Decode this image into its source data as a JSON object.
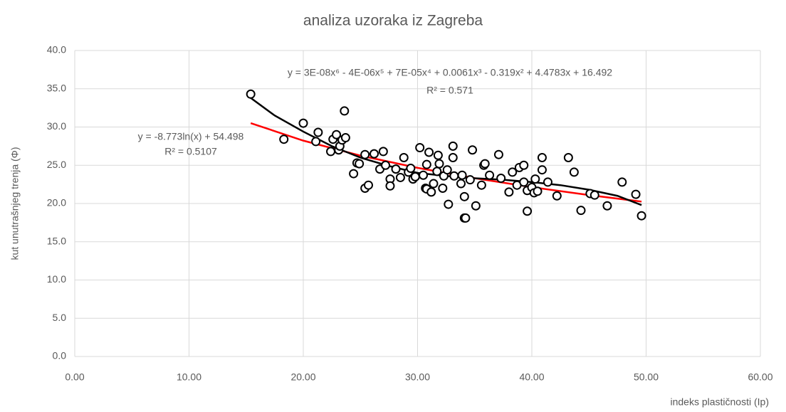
{
  "chart_data": {
    "type": "scatter",
    "title": "analiza uzoraka iz Zagreba",
    "xlabel": "indeks plastičnosti (Ip)",
    "ylabel": "kut unutrašnjeg trenja (Φ)",
    "xlim": [
      0,
      60
    ],
    "ylim": [
      0,
      40
    ],
    "xticks": [
      {
        "value": 0,
        "label": "0.00"
      },
      {
        "value": 10,
        "label": "10.00"
      },
      {
        "value": 20,
        "label": "20.00"
      },
      {
        "value": 30,
        "label": "30.00"
      },
      {
        "value": 40,
        "label": "40.00"
      },
      {
        "value": 50,
        "label": "50.00"
      },
      {
        "value": 60,
        "label": "60.00"
      }
    ],
    "yticks": [
      {
        "value": 0,
        "label": "0.0"
      },
      {
        "value": 5,
        "label": "5.0"
      },
      {
        "value": 10,
        "label": "10.0"
      },
      {
        "value": 15,
        "label": "15.0"
      },
      {
        "value": 20,
        "label": "20.0"
      },
      {
        "value": 25,
        "label": "25.0"
      },
      {
        "value": 30,
        "label": "30.0"
      },
      {
        "value": 35,
        "label": "35.0"
      },
      {
        "value": 40,
        "label": "40.0"
      }
    ],
    "grid": true,
    "series": [
      {
        "color": "#000000",
        "x": [
          15.4,
          18.3,
          20.0,
          21.1,
          21.3,
          22.4,
          22.6,
          22.9,
          23.1,
          23.2,
          23.4,
          23.6,
          23.7,
          24.4,
          24.7,
          24.9,
          25.4,
          25.4,
          25.7,
          26.2,
          26.7,
          27.0,
          27.2,
          27.6,
          27.6,
          28.1,
          28.5,
          28.8,
          29.2,
          29.4,
          29.6,
          29.8,
          30.2,
          30.5,
          30.7,
          30.8,
          30.8,
          31.0,
          31.2,
          31.4,
          31.7,
          31.8,
          31.9,
          32.2,
          32.3,
          32.6,
          32.7,
          33.1,
          33.1,
          33.2,
          33.8,
          33.9,
          34.1,
          34.1,
          34.2,
          34.6,
          34.8,
          35.1,
          35.6,
          35.8,
          35.9,
          36.3,
          37.1,
          37.3,
          38.0,
          38.3,
          38.7,
          38.9,
          39.3,
          39.3,
          39.6,
          39.6,
          40.0,
          40.2,
          40.3,
          40.5,
          40.9,
          40.9,
          41.4,
          42.2,
          43.2,
          43.7,
          44.3,
          45.1,
          45.5,
          46.6,
          47.9,
          49.1,
          49.6
        ],
        "values": [
          34.3,
          28.4,
          30.5,
          28.1,
          29.3,
          26.8,
          28.4,
          29.0,
          27.0,
          27.5,
          28.3,
          32.1,
          28.6,
          23.9,
          25.3,
          25.2,
          26.4,
          22.0,
          22.4,
          26.5,
          24.5,
          26.8,
          25.0,
          23.2,
          22.3,
          24.5,
          23.4,
          26.0,
          24.1,
          24.6,
          23.2,
          23.5,
          27.3,
          23.7,
          22.0,
          25.1,
          21.9,
          26.7,
          21.5,
          22.6,
          24.2,
          26.3,
          25.2,
          22.0,
          23.6,
          24.4,
          19.9,
          27.5,
          26.0,
          23.6,
          22.6,
          23.7,
          20.9,
          18.1,
          18.1,
          23.1,
          27.0,
          19.7,
          22.4,
          25.0,
          25.2,
          23.7,
          26.4,
          23.3,
          21.5,
          24.1,
          22.4,
          24.7,
          25.0,
          22.8,
          21.7,
          19.0,
          22.1,
          21.4,
          23.2,
          21.6,
          26.0,
          24.4,
          22.8,
          21.0,
          26.0,
          24.1,
          19.1,
          21.3,
          21.1,
          19.7,
          22.8,
          21.2,
          18.4
        ]
      }
    ],
    "trendlines": [
      {
        "color": "#ff0000",
        "equation": "y = -8.773ln(x) + 54.498",
        "r2": "R² = 0.5107",
        "x": [
          15.4,
          20,
          25,
          30,
          35,
          40,
          45,
          49.6
        ],
        "values": [
          30.51,
          28.22,
          26.26,
          24.66,
          23.31,
          22.14,
          21.1,
          20.25
        ]
      },
      {
        "color": "#000000",
        "equation": "y = 3E-08x⁶ - 4E-06x⁵ + 7E-05x⁴ + 0.0061x³ - 0.319x² + 4.4783x + 16.492",
        "r2": "R² = 0.571",
        "x": [
          15.4,
          17.5,
          20,
          22.5,
          25,
          27.5,
          30,
          32.5,
          35,
          37.5,
          40,
          42.5,
          45,
          47.5,
          49.6
        ],
        "values": [
          33.8,
          31.5,
          29.4,
          27.5,
          26.0,
          24.9,
          24.0,
          23.6,
          23.3,
          23.1,
          22.8,
          22.4,
          21.8,
          21.0,
          19.8
        ]
      }
    ]
  }
}
